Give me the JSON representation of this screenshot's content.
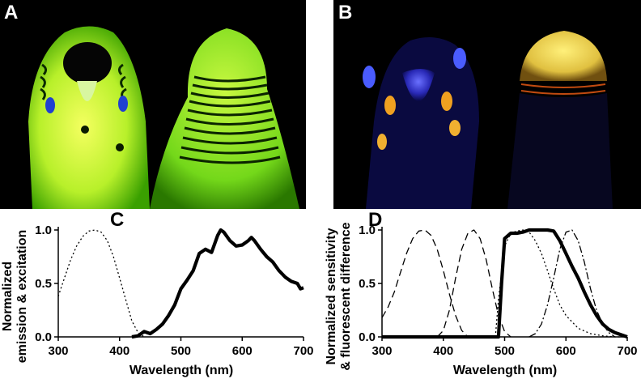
{
  "panels": {
    "a": {
      "letter": "A"
    },
    "b": {
      "letter": "B"
    },
    "c": {
      "letter": "C"
    },
    "d": {
      "letter": "D"
    }
  },
  "chart_data": [
    {
      "panel": "C",
      "type": "line",
      "xlabel": "Wavelength (nm)",
      "ylabel_line1": "Normalized",
      "ylabel_line2": "emission & excitation",
      "xlim": [
        300,
        700
      ],
      "ylim": [
        0,
        1.0
      ],
      "xticks": [
        "300",
        "400",
        "500",
        "600",
        "700"
      ],
      "yticks": [
        "0.0",
        "0.5",
        "1.0"
      ],
      "series": [
        {
          "style": "dotted",
          "x": [
            300,
            310,
            320,
            330,
            340,
            350,
            360,
            370,
            380,
            390,
            400,
            410,
            420,
            430,
            440
          ],
          "y": [
            0.38,
            0.55,
            0.72,
            0.85,
            0.94,
            0.99,
            1.0,
            0.98,
            0.9,
            0.75,
            0.55,
            0.35,
            0.15,
            0.04,
            0.0
          ]
        },
        {
          "style": "thick",
          "x": [
            420,
            430,
            440,
            450,
            460,
            470,
            480,
            490,
            500,
            510,
            520,
            530,
            540,
            550,
            560,
            565,
            570,
            580,
            590,
            600,
            610,
            615,
            620,
            630,
            640,
            650,
            660,
            670,
            680,
            690,
            695,
            700
          ],
          "y": [
            0.0,
            0.01,
            0.05,
            0.03,
            0.07,
            0.12,
            0.2,
            0.3,
            0.45,
            0.53,
            0.62,
            0.78,
            0.82,
            0.79,
            0.95,
            1.0,
            0.98,
            0.9,
            0.85,
            0.86,
            0.9,
            0.93,
            0.9,
            0.82,
            0.75,
            0.7,
            0.62,
            0.56,
            0.52,
            0.5,
            0.45,
            0.46
          ]
        }
      ]
    },
    {
      "panel": "D",
      "type": "line",
      "xlabel": "Wavelength (nm)",
      "ylabel_line1": "Normalized sensitivity",
      "ylabel_line2": "& fluorescent difference",
      "xlim": [
        300,
        700
      ],
      "ylim": [
        0,
        1.0
      ],
      "xticks": [
        "300",
        "400",
        "500",
        "600",
        "700"
      ],
      "yticks": [
        "0.0",
        "0.5",
        "1.0"
      ],
      "series": [
        {
          "style": "dashed",
          "x": [
            300,
            310,
            320,
            330,
            340,
            350,
            360,
            370,
            380,
            390,
            400,
            410,
            420,
            430,
            440
          ],
          "y": [
            0.18,
            0.28,
            0.42,
            0.6,
            0.78,
            0.92,
            0.99,
            1.0,
            0.95,
            0.82,
            0.62,
            0.4,
            0.2,
            0.06,
            0.0
          ]
        },
        {
          "style": "dashed",
          "x": [
            390,
            400,
            410,
            420,
            430,
            440,
            450,
            460,
            470,
            480,
            490,
            500,
            510
          ],
          "y": [
            0.0,
            0.06,
            0.25,
            0.55,
            0.82,
            0.97,
            1.0,
            0.92,
            0.72,
            0.45,
            0.2,
            0.05,
            0.0
          ]
        },
        {
          "style": "dotted",
          "x": [
            485,
            490,
            500,
            510,
            520,
            530,
            540,
            550,
            560,
            570,
            580,
            590,
            600,
            620,
            640,
            660,
            680,
            700
          ],
          "y": [
            0.0,
            0.35,
            0.85,
            0.97,
            0.99,
            1.0,
            0.98,
            0.9,
            0.78,
            0.62,
            0.45,
            0.3,
            0.2,
            0.08,
            0.03,
            0.01,
            0.0,
            0.0
          ]
        },
        {
          "style": "dashdot",
          "x": [
            540,
            550,
            560,
            570,
            580,
            590,
            600,
            610,
            620,
            630,
            640,
            650,
            660,
            670,
            680
          ],
          "y": [
            0.0,
            0.03,
            0.12,
            0.3,
            0.55,
            0.82,
            0.98,
            1.0,
            0.9,
            0.7,
            0.45,
            0.25,
            0.12,
            0.04,
            0.0
          ]
        },
        {
          "style": "thick",
          "x": [
            300,
            490,
            495,
            500,
            510,
            520,
            530,
            540,
            550,
            560,
            570,
            580,
            590,
            600,
            610,
            620,
            630,
            640,
            650,
            660,
            670,
            680,
            690,
            700
          ],
          "y": [
            0.0,
            0.0,
            0.5,
            0.92,
            0.97,
            0.97,
            0.98,
            1.0,
            1.0,
            1.0,
            1.0,
            0.99,
            0.9,
            0.78,
            0.66,
            0.55,
            0.42,
            0.3,
            0.2,
            0.12,
            0.07,
            0.04,
            0.02,
            0.0
          ]
        }
      ]
    }
  ]
}
